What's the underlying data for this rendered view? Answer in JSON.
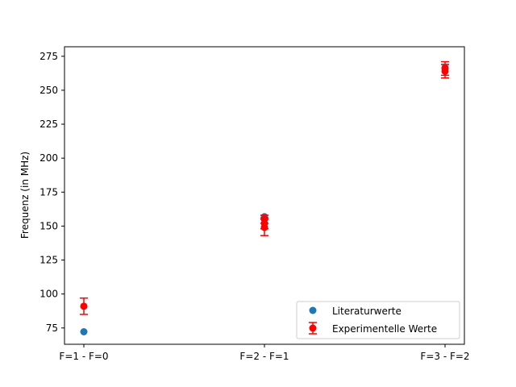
{
  "chart_data": {
    "type": "scatter",
    "categories": [
      "F=1 - F=0",
      "F=2 - F=1",
      "F=3 - F=2"
    ],
    "ylabel": "Frequenz (in MHz)",
    "xlabel": "",
    "title": "",
    "ylim": [
      63,
      282
    ],
    "yticks": [
      75,
      100,
      125,
      150,
      175,
      200,
      225,
      250,
      275
    ],
    "grid": false,
    "legend_position": "lower-right",
    "series": [
      {
        "name": "Literaturwerte",
        "marker": "circle",
        "color": "#1f77b4",
        "points": [
          {
            "x": "F=1 - F=0",
            "y": 72.2
          },
          {
            "x": "F=2 - F=1",
            "y": 156.9
          },
          {
            "x": "F=3 - F=2",
            "y": 266.7
          }
        ]
      },
      {
        "name": "Experimentelle Werte",
        "marker": "circle-errorbar",
        "color": "#ff0000",
        "points": [
          {
            "x": "F=1 - F=0",
            "y": 91,
            "err": 6
          },
          {
            "x": "F=2 - F=1",
            "y": 155,
            "err": 3
          },
          {
            "x": "F=2 - F=1",
            "y": 152,
            "err": 4
          },
          {
            "x": "F=2 - F=1",
            "y": 149,
            "err": 6
          },
          {
            "x": "F=3 - F=2",
            "y": 266,
            "err": 5
          },
          {
            "x": "F=3 - F=2",
            "y": 264,
            "err": 5
          }
        ]
      }
    ]
  }
}
